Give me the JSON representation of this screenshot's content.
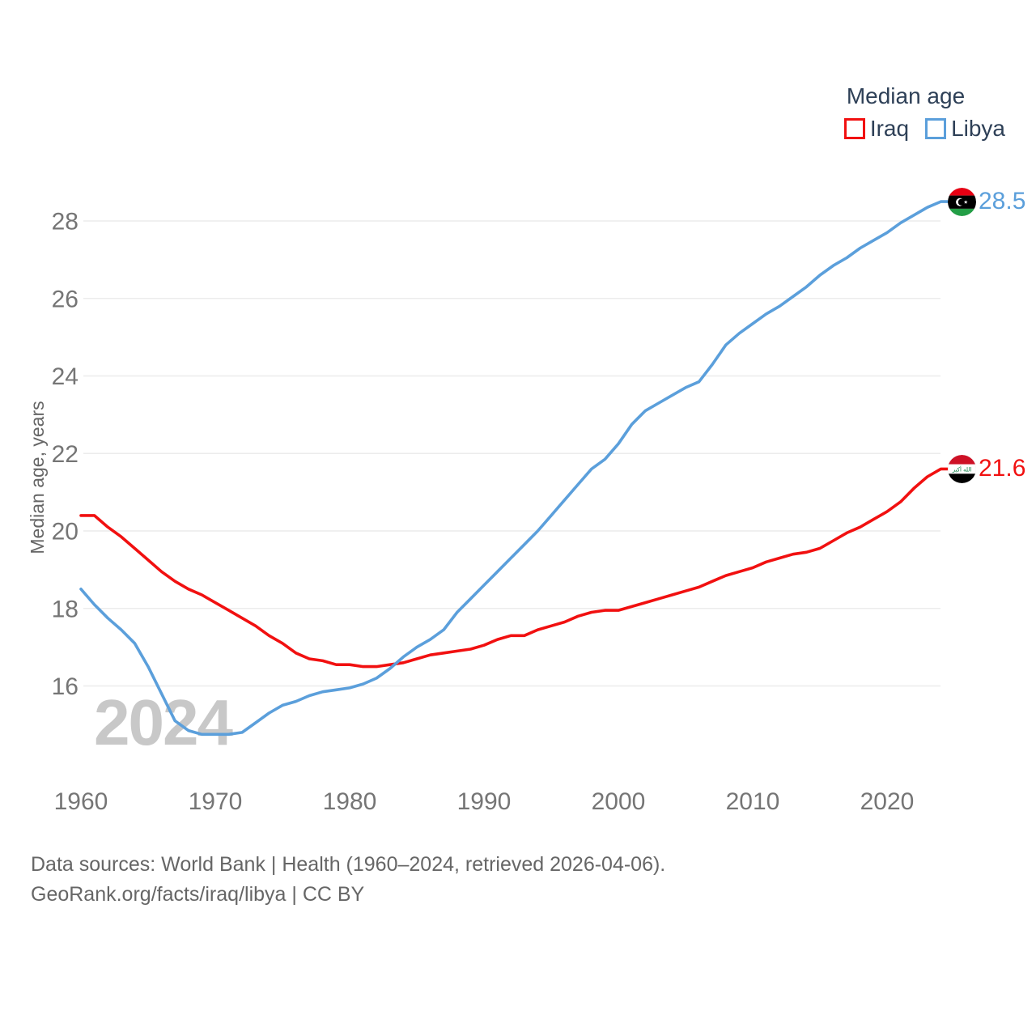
{
  "legend": {
    "title": "Median age",
    "items": [
      {
        "id": "iraq",
        "label": "Iraq",
        "color": "#f11010"
      },
      {
        "id": "libya",
        "label": "Libya",
        "color": "#5b9fdb"
      }
    ]
  },
  "y_axis": {
    "title": "Median age, years",
    "ticks": [
      16,
      18,
      20,
      22,
      24,
      26,
      28
    ]
  },
  "x_axis": {
    "ticks": [
      1960,
      1970,
      1980,
      1990,
      2000,
      2010,
      2020
    ]
  },
  "end_labels": {
    "iraq": "21.6",
    "libya": "28.5"
  },
  "watermark": "2024",
  "footer": {
    "line1": "Data sources: World Bank | Health (1960–2024, retrieved 2026-04-06).",
    "line2": "GeoRank.org/facts/iraq/libya | CC BY"
  },
  "chart_data": {
    "type": "line",
    "title": "Median age",
    "xlabel": "",
    "ylabel": "Median age, years",
    "x_start": 1960,
    "x_end": 2024,
    "x_interval": 1,
    "ylim": [
      14,
      29
    ],
    "grid": "horizontal",
    "legend_position": "top-right",
    "years": [
      1960,
      1961,
      1962,
      1963,
      1964,
      1965,
      1966,
      1967,
      1968,
      1969,
      1970,
      1971,
      1972,
      1973,
      1974,
      1975,
      1976,
      1977,
      1978,
      1979,
      1980,
      1981,
      1982,
      1983,
      1984,
      1985,
      1986,
      1987,
      1988,
      1989,
      1990,
      1991,
      1992,
      1993,
      1994,
      1995,
      1996,
      1997,
      1998,
      1999,
      2000,
      2001,
      2002,
      2003,
      2004,
      2005,
      2006,
      2007,
      2008,
      2009,
      2010,
      2011,
      2012,
      2013,
      2014,
      2015,
      2016,
      2017,
      2018,
      2019,
      2020,
      2021,
      2022,
      2023,
      2024
    ],
    "series": [
      {
        "name": "Iraq",
        "color": "#f11010",
        "end_value": 21.6,
        "values": [
          20.4,
          20.4,
          20.1,
          19.85,
          19.55,
          19.25,
          18.95,
          18.7,
          18.5,
          18.35,
          18.15,
          17.95,
          17.75,
          17.55,
          17.3,
          17.1,
          16.85,
          16.7,
          16.65,
          16.55,
          16.55,
          16.5,
          16.5,
          16.55,
          16.6,
          16.7,
          16.8,
          16.85,
          16.9,
          16.95,
          17.05,
          17.2,
          17.3,
          17.3,
          17.45,
          17.55,
          17.65,
          17.8,
          17.9,
          17.95,
          17.95,
          18.05,
          18.15,
          18.25,
          18.35,
          18.45,
          18.55,
          18.7,
          18.85,
          18.95,
          19.05,
          19.2,
          19.3,
          19.4,
          19.45,
          19.55,
          19.75,
          19.95,
          20.1,
          20.3,
          20.5,
          20.75,
          21.1,
          21.4,
          21.6
        ]
      },
      {
        "name": "Libya",
        "color": "#5b9fdb",
        "end_value": 28.5,
        "values": [
          18.5,
          18.1,
          17.75,
          17.45,
          17.1,
          16.5,
          15.8,
          15.1,
          14.85,
          14.75,
          14.75,
          14.75,
          14.8,
          15.05,
          15.3,
          15.5,
          15.6,
          15.75,
          15.85,
          15.9,
          15.95,
          16.05,
          16.2,
          16.45,
          16.75,
          17.0,
          17.2,
          17.45,
          17.9,
          18.25,
          18.6,
          18.95,
          19.3,
          19.65,
          20.0,
          20.4,
          20.8,
          21.2,
          21.6,
          21.85,
          22.25,
          22.75,
          23.1,
          23.3,
          23.5,
          23.7,
          23.85,
          24.3,
          24.8,
          25.1,
          25.35,
          25.6,
          25.8,
          26.05,
          26.3,
          26.6,
          26.85,
          27.05,
          27.3,
          27.5,
          27.7,
          27.95,
          28.15,
          28.35,
          28.5
        ]
      }
    ]
  }
}
